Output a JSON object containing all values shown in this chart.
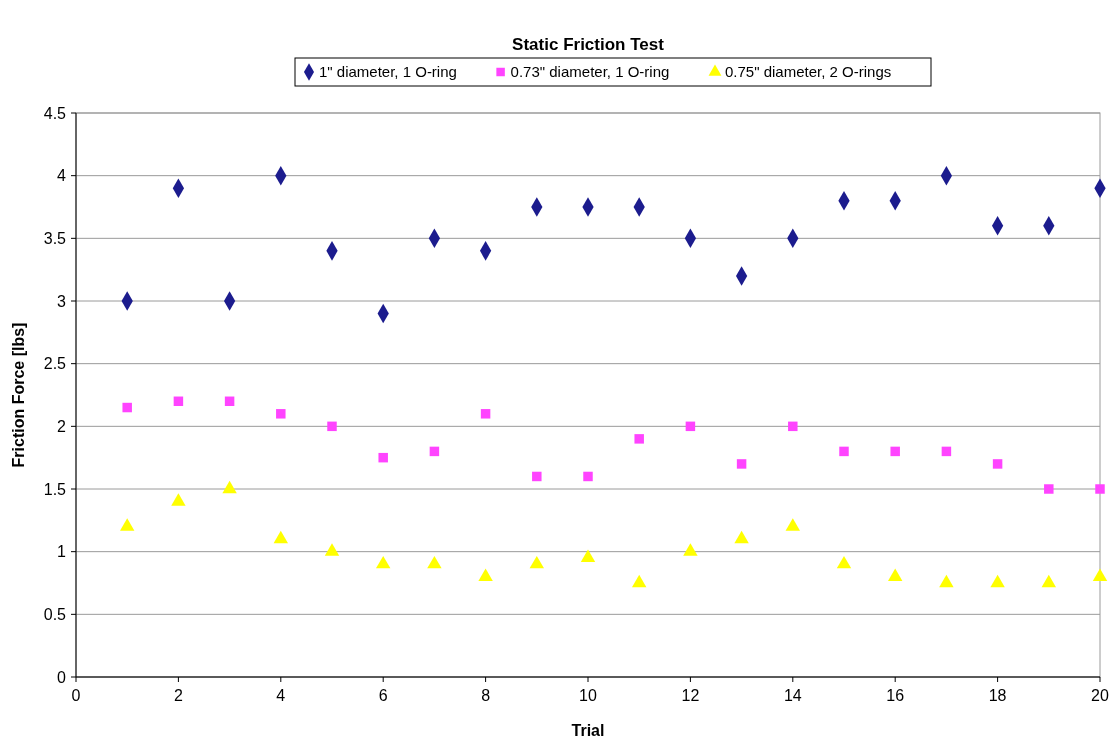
{
  "chart_data": {
    "type": "scatter",
    "title": "Static Friction Test",
    "xlabel": "Trial",
    "ylabel": "Friction Force [lbs]",
    "x": [
      1,
      2,
      3,
      4,
      5,
      6,
      7,
      8,
      9,
      10,
      11,
      12,
      13,
      14,
      15,
      16,
      17,
      18,
      19,
      20
    ],
    "xlim": [
      0,
      20
    ],
    "xticks": [
      0,
      2,
      4,
      6,
      8,
      10,
      12,
      14,
      16,
      18,
      20
    ],
    "ylim": [
      0,
      4.5
    ],
    "yticks": [
      0,
      0.5,
      1,
      1.5,
      2,
      2.5,
      3,
      3.5,
      4,
      4.5
    ],
    "grid": "y",
    "legend": "top",
    "series": [
      {
        "name": "1\" diameter, 1 O-ring",
        "color": "#1c1c8e",
        "marker": "diamond",
        "values": [
          3,
          3.9,
          3,
          4,
          3.4,
          2.9,
          3.5,
          3.4,
          3.75,
          3.75,
          3.75,
          3.5,
          3.2,
          3.5,
          3.8,
          3.8,
          4,
          3.6,
          3.6,
          3.9
        ]
      },
      {
        "name": "0.73\" diameter, 1 O-ring",
        "color": "#ff44ff",
        "marker": "square",
        "values": [
          2.15,
          2.2,
          2.2,
          2.1,
          2,
          1.75,
          1.8,
          2.1,
          1.6,
          1.6,
          1.9,
          2,
          1.7,
          2,
          1.8,
          1.8,
          1.8,
          1.7,
          1.5,
          1.5
        ]
      },
      {
        "name": "0.75\" diameter, 2 O-rings",
        "color": "#ffff00",
        "marker": "triangle",
        "values": [
          1.2,
          1.4,
          1.5,
          1.1,
          1,
          0.9,
          0.9,
          0.8,
          0.9,
          0.95,
          0.75,
          1,
          1.1,
          1.2,
          0.9,
          0.8,
          0.75,
          0.75,
          0.75,
          0.8
        ]
      }
    ]
  }
}
